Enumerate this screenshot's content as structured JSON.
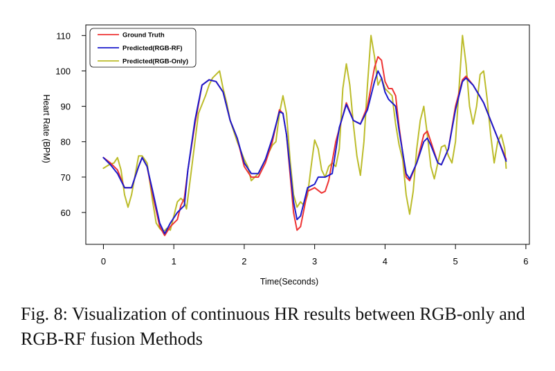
{
  "caption": "Fig. 8: Visualization of continuous HR results between RGB-only and RGB-RF fusion Methods",
  "chart_data": {
    "type": "line",
    "title": "",
    "xlabel": "Time(Seconds)",
    "ylabel": "Heart Rate (BPM)",
    "xlim": [
      -0.25,
      6.05
    ],
    "ylim": [
      51,
      113
    ],
    "xticks": [
      0,
      1,
      2,
      3,
      4,
      5,
      6
    ],
    "yticks": [
      60,
      70,
      80,
      90,
      100,
      110
    ],
    "grid": false,
    "legend_position": "top-left",
    "series": [
      {
        "name": "Ground Truth",
        "color": "#ee3333",
        "points": [
          [
            0.0,
            75.5
          ],
          [
            0.1,
            74
          ],
          [
            0.2,
            72
          ],
          [
            0.3,
            67
          ],
          [
            0.4,
            67
          ],
          [
            0.5,
            73
          ],
          [
            0.55,
            75.5
          ],
          [
            0.62,
            73
          ],
          [
            0.7,
            65
          ],
          [
            0.8,
            56
          ],
          [
            0.87,
            53.5
          ],
          [
            0.95,
            56
          ],
          [
            1.05,
            58
          ],
          [
            1.1,
            62
          ],
          [
            1.15,
            64
          ],
          [
            1.2,
            72
          ],
          [
            1.3,
            85
          ],
          [
            1.4,
            96
          ],
          [
            1.5,
            97.5
          ],
          [
            1.6,
            97
          ],
          [
            1.7,
            94
          ],
          [
            1.8,
            86
          ],
          [
            1.9,
            81
          ],
          [
            2.0,
            73
          ],
          [
            2.1,
            70
          ],
          [
            2.2,
            70
          ],
          [
            2.3,
            74
          ],
          [
            2.4,
            80
          ],
          [
            2.5,
            89
          ],
          [
            2.55,
            88
          ],
          [
            2.6,
            82
          ],
          [
            2.7,
            60
          ],
          [
            2.75,
            55
          ],
          [
            2.8,
            56
          ],
          [
            2.9,
            66
          ],
          [
            3.0,
            67
          ],
          [
            3.1,
            65.5
          ],
          [
            3.15,
            66
          ],
          [
            3.2,
            69
          ],
          [
            3.3,
            80
          ],
          [
            3.45,
            91
          ],
          [
            3.55,
            86
          ],
          [
            3.65,
            85
          ],
          [
            3.75,
            90
          ],
          [
            3.85,
            101
          ],
          [
            3.9,
            104
          ],
          [
            3.95,
            103
          ],
          [
            4.0,
            97
          ],
          [
            4.05,
            95
          ],
          [
            4.1,
            95
          ],
          [
            4.15,
            93
          ],
          [
            4.2,
            84
          ],
          [
            4.3,
            70
          ],
          [
            4.35,
            69
          ],
          [
            4.45,
            74
          ],
          [
            4.55,
            82
          ],
          [
            4.6,
            83
          ],
          [
            4.65,
            80
          ],
          [
            4.75,
            74
          ],
          [
            4.8,
            73.5
          ],
          [
            4.9,
            78
          ],
          [
            5.0,
            90
          ],
          [
            5.1,
            97.5
          ],
          [
            5.15,
            98.5
          ],
          [
            5.25,
            96
          ],
          [
            5.4,
            91
          ],
          [
            5.5,
            86
          ],
          [
            5.6,
            81
          ],
          [
            5.72,
            75
          ]
        ]
      },
      {
        "name": "Predicted(RGB-RF)",
        "color": "#1a1acc",
        "points": [
          [
            0.0,
            75.5
          ],
          [
            0.1,
            73.5
          ],
          [
            0.2,
            71
          ],
          [
            0.3,
            67
          ],
          [
            0.4,
            67
          ],
          [
            0.5,
            73
          ],
          [
            0.55,
            75.5
          ],
          [
            0.62,
            73
          ],
          [
            0.7,
            66
          ],
          [
            0.8,
            57
          ],
          [
            0.87,
            54
          ],
          [
            0.95,
            57
          ],
          [
            1.05,
            60
          ],
          [
            1.15,
            62
          ],
          [
            1.2,
            72
          ],
          [
            1.3,
            86
          ],
          [
            1.4,
            96
          ],
          [
            1.5,
            97.5
          ],
          [
            1.6,
            97
          ],
          [
            1.7,
            94
          ],
          [
            1.8,
            86
          ],
          [
            1.9,
            81
          ],
          [
            2.0,
            74
          ],
          [
            2.1,
            71
          ],
          [
            2.2,
            71
          ],
          [
            2.3,
            75
          ],
          [
            2.4,
            81
          ],
          [
            2.5,
            88.5
          ],
          [
            2.55,
            88
          ],
          [
            2.6,
            82
          ],
          [
            2.7,
            63
          ],
          [
            2.75,
            58
          ],
          [
            2.8,
            59
          ],
          [
            2.9,
            67
          ],
          [
            3.0,
            68
          ],
          [
            3.05,
            70
          ],
          [
            3.15,
            70
          ],
          [
            3.25,
            71
          ],
          [
            3.35,
            84
          ],
          [
            3.45,
            90.5
          ],
          [
            3.55,
            86
          ],
          [
            3.65,
            85
          ],
          [
            3.75,
            89
          ],
          [
            3.85,
            97
          ],
          [
            3.9,
            100
          ],
          [
            3.95,
            98
          ],
          [
            4.0,
            94
          ],
          [
            4.05,
            92
          ],
          [
            4.1,
            91
          ],
          [
            4.15,
            90
          ],
          [
            4.2,
            83
          ],
          [
            4.3,
            71
          ],
          [
            4.35,
            69.5
          ],
          [
            4.45,
            74
          ],
          [
            4.55,
            80
          ],
          [
            4.6,
            81
          ],
          [
            4.65,
            79
          ],
          [
            4.75,
            74
          ],
          [
            4.8,
            73.5
          ],
          [
            4.9,
            78
          ],
          [
            5.0,
            89
          ],
          [
            5.1,
            97
          ],
          [
            5.15,
            98
          ],
          [
            5.25,
            96
          ],
          [
            5.4,
            91
          ],
          [
            5.5,
            86
          ],
          [
            5.6,
            81
          ],
          [
            5.72,
            74.5
          ]
        ]
      },
      {
        "name": "Predicted(RGB-Only)",
        "color": "#bcbc2a",
        "points": [
          [
            0.0,
            72.5
          ],
          [
            0.08,
            73.5
          ],
          [
            0.15,
            74
          ],
          [
            0.2,
            75.5
          ],
          [
            0.25,
            72
          ],
          [
            0.3,
            65
          ],
          [
            0.35,
            61.5
          ],
          [
            0.4,
            65
          ],
          [
            0.5,
            76
          ],
          [
            0.55,
            76
          ],
          [
            0.62,
            74
          ],
          [
            0.7,
            63
          ],
          [
            0.75,
            57
          ],
          [
            0.8,
            55.5
          ],
          [
            0.85,
            54.5
          ],
          [
            0.9,
            55.5
          ],
          [
            0.95,
            55
          ],
          [
            1.0,
            59
          ],
          [
            1.05,
            63
          ],
          [
            1.1,
            64
          ],
          [
            1.15,
            63
          ],
          [
            1.18,
            61
          ],
          [
            1.25,
            72
          ],
          [
            1.35,
            88
          ],
          [
            1.45,
            93
          ],
          [
            1.5,
            96
          ],
          [
            1.55,
            98
          ],
          [
            1.6,
            99
          ],
          [
            1.65,
            100
          ],
          [
            1.7,
            95
          ],
          [
            1.75,
            91
          ],
          [
            1.8,
            86
          ],
          [
            1.9,
            80
          ],
          [
            2.0,
            75
          ],
          [
            2.05,
            73
          ],
          [
            2.1,
            69
          ],
          [
            2.2,
            71
          ],
          [
            2.3,
            75
          ],
          [
            2.4,
            79
          ],
          [
            2.45,
            80
          ],
          [
            2.5,
            88
          ],
          [
            2.55,
            93
          ],
          [
            2.6,
            88
          ],
          [
            2.65,
            75
          ],
          [
            2.7,
            65
          ],
          [
            2.75,
            61.5
          ],
          [
            2.8,
            63
          ],
          [
            2.85,
            62
          ],
          [
            2.9,
            65
          ],
          [
            2.95,
            73
          ],
          [
            3.0,
            80.5
          ],
          [
            3.05,
            78
          ],
          [
            3.1,
            72
          ],
          [
            3.15,
            70
          ],
          [
            3.2,
            73
          ],
          [
            3.25,
            74
          ],
          [
            3.3,
            73
          ],
          [
            3.35,
            78
          ],
          [
            3.4,
            95
          ],
          [
            3.45,
            102
          ],
          [
            3.5,
            96
          ],
          [
            3.55,
            85
          ],
          [
            3.6,
            76
          ],
          [
            3.65,
            70.5
          ],
          [
            3.7,
            80
          ],
          [
            3.75,
            96
          ],
          [
            3.8,
            110
          ],
          [
            3.85,
            104
          ],
          [
            3.9,
            96
          ],
          [
            3.95,
            98
          ],
          [
            4.0,
            95
          ],
          [
            4.05,
            94
          ],
          [
            4.1,
            93
          ],
          [
            4.15,
            85
          ],
          [
            4.2,
            79
          ],
          [
            4.25,
            75
          ],
          [
            4.3,
            65
          ],
          [
            4.35,
            59.5
          ],
          [
            4.4,
            66
          ],
          [
            4.45,
            78
          ],
          [
            4.5,
            86
          ],
          [
            4.55,
            90
          ],
          [
            4.6,
            82
          ],
          [
            4.65,
            73
          ],
          [
            4.7,
            69.5
          ],
          [
            4.75,
            74
          ],
          [
            4.8,
            78.5
          ],
          [
            4.85,
            79
          ],
          [
            4.9,
            76
          ],
          [
            4.95,
            74
          ],
          [
            5.0,
            80
          ],
          [
            5.05,
            95
          ],
          [
            5.1,
            110
          ],
          [
            5.15,
            102
          ],
          [
            5.2,
            90
          ],
          [
            5.25,
            85
          ],
          [
            5.3,
            90
          ],
          [
            5.35,
            99
          ],
          [
            5.4,
            100
          ],
          [
            5.45,
            92
          ],
          [
            5.5,
            82
          ],
          [
            5.55,
            74
          ],
          [
            5.6,
            80
          ],
          [
            5.65,
            82
          ],
          [
            5.7,
            78
          ],
          [
            5.72,
            72.5
          ]
        ]
      }
    ]
  }
}
